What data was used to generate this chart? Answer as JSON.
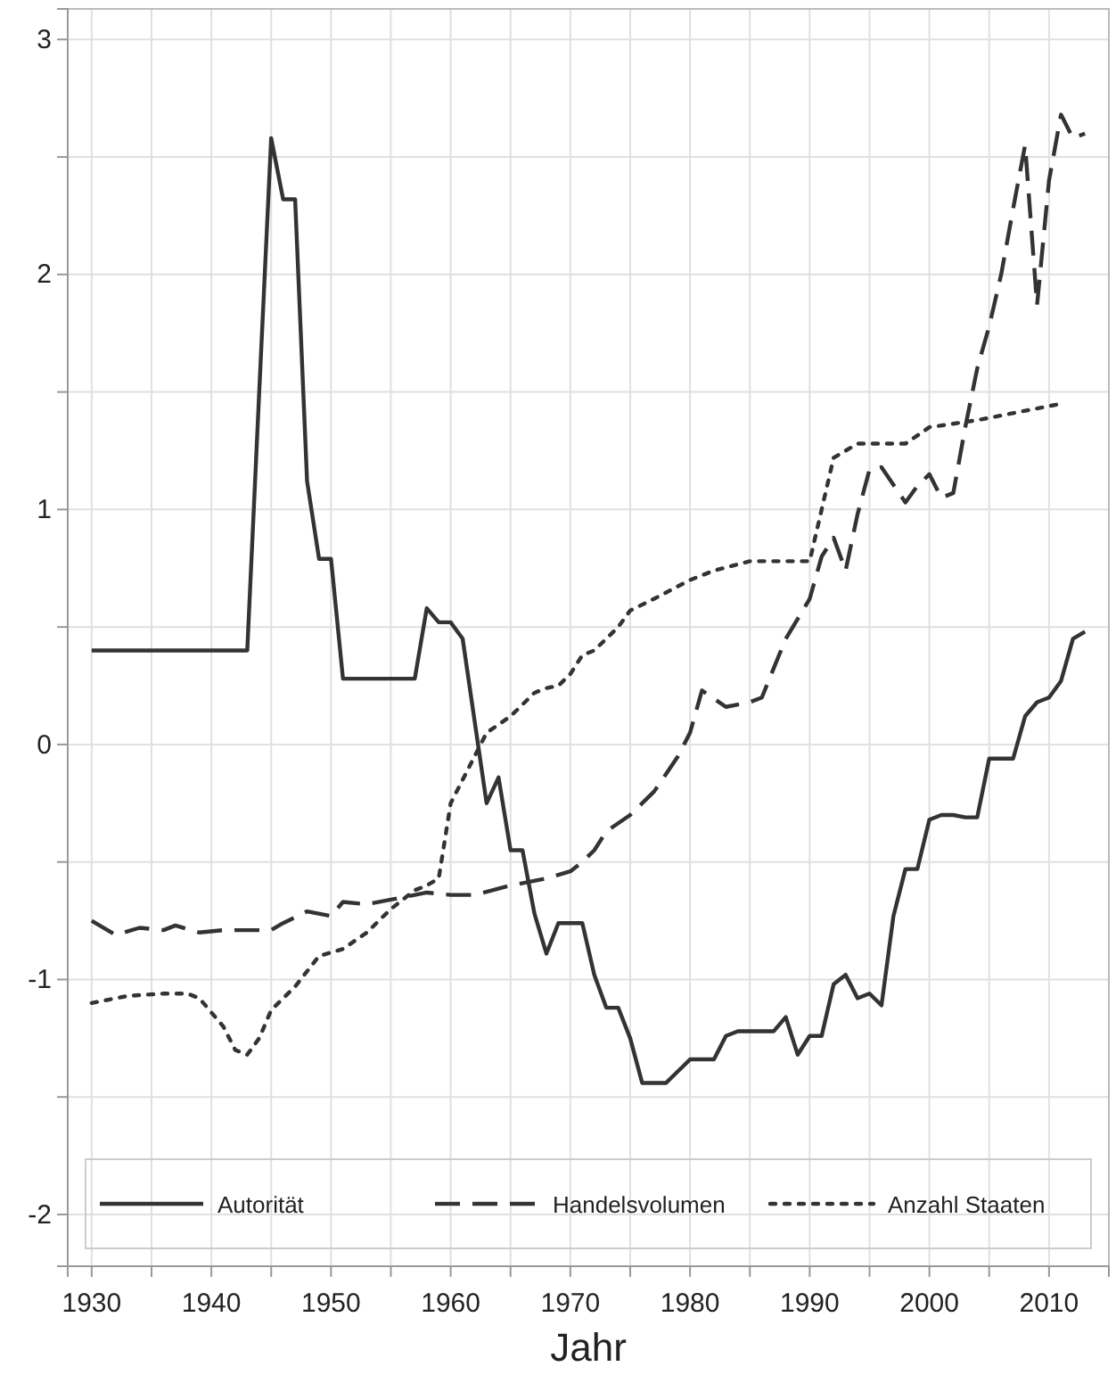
{
  "chart_data": {
    "type": "line",
    "xlabel": "Jahr",
    "xlim": [
      1928,
      2015
    ],
    "ylim": [
      -2.22,
      3.13
    ],
    "xticks": [
      1930,
      {
        "value": 1935,
        "label": null
      },
      1940,
      {
        "value": 1945,
        "label": null
      },
      1950,
      {
        "value": 1955,
        "label": null
      },
      1960,
      {
        "value": 1965,
        "label": null
      },
      1970,
      {
        "value": 1975,
        "label": null
      },
      1980,
      {
        "value": 1985,
        "label": null
      },
      1990,
      {
        "value": 1995,
        "label": null
      },
      2000,
      {
        "value": 2005,
        "label": null
      },
      2010
    ],
    "yticks": [
      -2,
      {
        "value": -1.5,
        "label": null
      },
      -1,
      {
        "value": -0.5,
        "label": null
      },
      0,
      {
        "value": 0.5,
        "label": null
      },
      1,
      {
        "value": 1.5,
        "label": null
      },
      2,
      {
        "value": 2.5,
        "label": null
      },
      3
    ],
    "grid": true,
    "legend": "bottom",
    "marker": "none",
    "series": [
      {
        "name": "Autorität",
        "color": "#333333",
        "line_style": "solid",
        "x": [
          1930,
          1943,
          1944,
          1945,
          1946,
          1947,
          1948,
          1949,
          1950,
          1951,
          1957,
          1958,
          1959,
          1960,
          1961,
          1962,
          1963,
          1964,
          1965,
          1966,
          1967,
          1968,
          1969,
          1970,
          1971,
          1972,
          1973,
          1974,
          1975,
          1976,
          1977,
          1978,
          1979,
          1980,
          1981,
          1982,
          1983,
          1984,
          1987,
          1988,
          1989,
          1990,
          1991,
          1992,
          1993,
          1994,
          1995,
          1996,
          1997,
          1998,
          1999,
          2000,
          2001,
          2002,
          2003,
          2004,
          2005,
          2006,
          2007,
          2008,
          2009,
          2010,
          2011,
          2012,
          2013
        ],
        "values": [
          0.4,
          0.4,
          1.5,
          2.58,
          2.32,
          2.32,
          1.12,
          0.79,
          0.79,
          0.28,
          0.28,
          0.58,
          0.52,
          0.52,
          0.45,
          0.1,
          -0.25,
          -0.14,
          -0.45,
          -0.45,
          -0.72,
          -0.89,
          -0.76,
          -0.76,
          -0.76,
          -0.98,
          -1.12,
          -1.12,
          -1.25,
          -1.44,
          -1.44,
          -1.44,
          -1.39,
          -1.34,
          -1.34,
          -1.34,
          -1.24,
          -1.22,
          -1.22,
          -1.16,
          -1.32,
          -1.24,
          -1.24,
          -1.02,
          -0.98,
          -1.08,
          -1.06,
          -1.11,
          -0.73,
          -0.53,
          -0.53,
          -0.32,
          -0.3,
          -0.3,
          -0.31,
          -0.31,
          -0.06,
          -0.06,
          -0.06,
          0.12,
          0.18,
          0.2,
          0.27,
          0.45,
          0.48
        ]
      },
      {
        "name": "Handelsvolumen",
        "color": "#333333",
        "line_style": "dashed",
        "x": [
          1930,
          1932,
          1934,
          1936,
          1937,
          1939,
          1941,
          1943,
          1945,
          1946,
          1948,
          1950,
          1951,
          1953,
          1955,
          1957,
          1958,
          1960,
          1962,
          1965,
          1968,
          1970,
          1971,
          1972,
          1973,
          1975,
          1977,
          1979,
          1980,
          1981,
          1983,
          1985,
          1986,
          1988,
          1990,
          1991,
          1992,
          1993,
          1994,
          1995,
          1996,
          1998,
          1999,
          2000,
          2001,
          2002,
          2003,
          2004,
          2005,
          2006,
          2007,
          2008,
          2009,
          2010,
          2011,
          2012,
          2013
        ],
        "values": [
          -0.75,
          -0.81,
          -0.78,
          -0.79,
          -0.77,
          -0.8,
          -0.79,
          -0.79,
          -0.79,
          -0.76,
          -0.71,
          -0.73,
          -0.67,
          -0.68,
          -0.66,
          -0.64,
          -0.63,
          -0.64,
          -0.64,
          -0.6,
          -0.57,
          -0.54,
          -0.5,
          -0.45,
          -0.37,
          -0.3,
          -0.2,
          -0.05,
          0.05,
          0.23,
          0.16,
          0.18,
          0.2,
          0.45,
          0.62,
          0.8,
          0.88,
          0.74,
          0.98,
          1.17,
          1.18,
          1.03,
          1.1,
          1.15,
          1.05,
          1.07,
          1.35,
          1.6,
          1.78,
          2.0,
          2.28,
          2.55,
          1.87,
          2.4,
          2.68,
          2.58,
          2.6
        ]
      },
      {
        "name": "Anzahl Staaten",
        "color": "#333333",
        "line_style": "dotted",
        "x": [
          1930,
          1933,
          1936,
          1938,
          1939,
          1941,
          1942,
          1943,
          1944,
          1945,
          1947,
          1949,
          1951,
          1953,
          1955,
          1957,
          1958,
          1959,
          1960,
          1961,
          1962,
          1963,
          1965,
          1967,
          1968,
          1969,
          1970,
          1971,
          1972,
          1974,
          1975,
          1977,
          1980,
          1982,
          1985,
          1990,
          1991,
          1992,
          1994,
          1998,
          2000,
          2004,
          2008,
          2011
        ],
        "values": [
          -1.1,
          -1.07,
          -1.06,
          -1.06,
          -1.08,
          -1.2,
          -1.3,
          -1.32,
          -1.25,
          -1.13,
          -1.03,
          -0.9,
          -0.87,
          -0.8,
          -0.7,
          -0.62,
          -0.6,
          -0.57,
          -0.25,
          -0.15,
          -0.05,
          0.05,
          0.12,
          0.22,
          0.24,
          0.25,
          0.3,
          0.38,
          0.4,
          0.5,
          0.57,
          0.62,
          0.7,
          0.74,
          0.78,
          0.78,
          1.0,
          1.22,
          1.28,
          1.28,
          1.35,
          1.38,
          1.42,
          1.45
        ]
      }
    ]
  }
}
